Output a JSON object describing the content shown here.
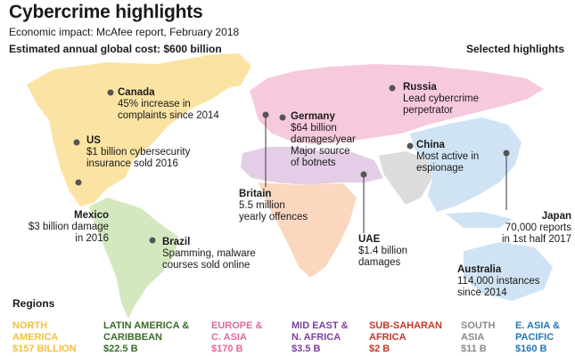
{
  "header": {
    "title": "Cybercrime highlights",
    "subtitle": "Economic impact: McAfee report, February 2018",
    "cost": "Estimated annual global cost: $600 billion",
    "selected": "Selected highlights"
  },
  "highlights": {
    "canada": {
      "name": "Canada",
      "desc": "45% increase in\ncomplaints since 2014"
    },
    "us": {
      "name": "US",
      "desc": "$1 billion cybersecurity\ninsurance sold 2016"
    },
    "mexico": {
      "name": "Mexico",
      "desc": "$3 billion damage\nin 2016"
    },
    "brazil": {
      "name": "Brazil",
      "desc": "Spamming, malware\ncourses sold online"
    },
    "britain": {
      "name": "Britain",
      "desc": "5.5 million\nyearly offences"
    },
    "germany": {
      "name": "Germany",
      "desc": "$64 billion\ndamages/year\nMajor source\nof botnets"
    },
    "russia": {
      "name": "Russia",
      "desc": "Lead cybercrime\nperpetrator"
    },
    "china": {
      "name": "China",
      "desc": "Most active in\nespionage"
    },
    "uae": {
      "name": "UAE",
      "desc": "$1.4 billion\ndamages"
    },
    "japan": {
      "name": "Japan",
      "desc": "70,000 reports\nin 1st half 2017"
    },
    "australia": {
      "name": "Australia",
      "desc": "114,000 instances\nsince 2014"
    }
  },
  "regions": {
    "title": "Regions",
    "items": [
      {
        "name": "NORTH\nAMERICA",
        "value": "$157 BILLION",
        "color": "#f2c23a"
      },
      {
        "name": "LATIN AMERICA &\nCARIBBEAN",
        "value": "$22.5 B",
        "color": "#3a6b2a"
      },
      {
        "name": "EUROPE &\nC. ASIA",
        "value": "$170 B",
        "color": "#e0679f"
      },
      {
        "name": "MID EAST &\nN. AFRICA",
        "value": "$3.5 B",
        "color": "#7b3fa0"
      },
      {
        "name": "SUB-SAHARAN\nAFRICA",
        "value": "$2 B",
        "color": "#c0392b"
      },
      {
        "name": "SOUTH\nASIA",
        "value": "$11 B",
        "color": "#8a8a8a"
      },
      {
        "name": "E. ASIA &\nPACIFIC",
        "value": "$160 B",
        "color": "#1f78b4"
      }
    ]
  }
}
